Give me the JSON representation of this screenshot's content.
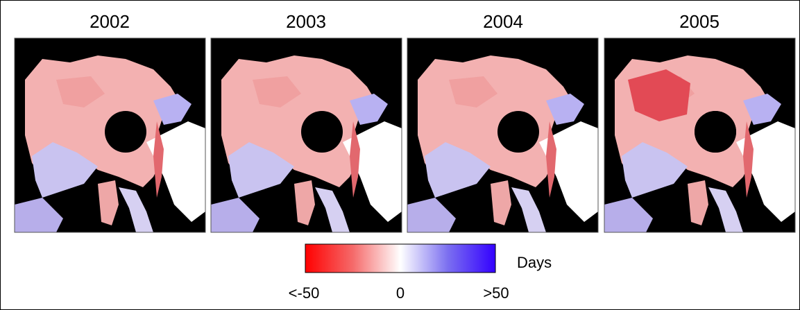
{
  "panels": [
    {
      "title": "2002"
    },
    {
      "title": "2003"
    },
    {
      "title": "2004"
    },
    {
      "title": "2005"
    }
  ],
  "colorbar": {
    "unit": "Days",
    "labels": [
      "<-50",
      "0",
      ">50"
    ]
  }
}
